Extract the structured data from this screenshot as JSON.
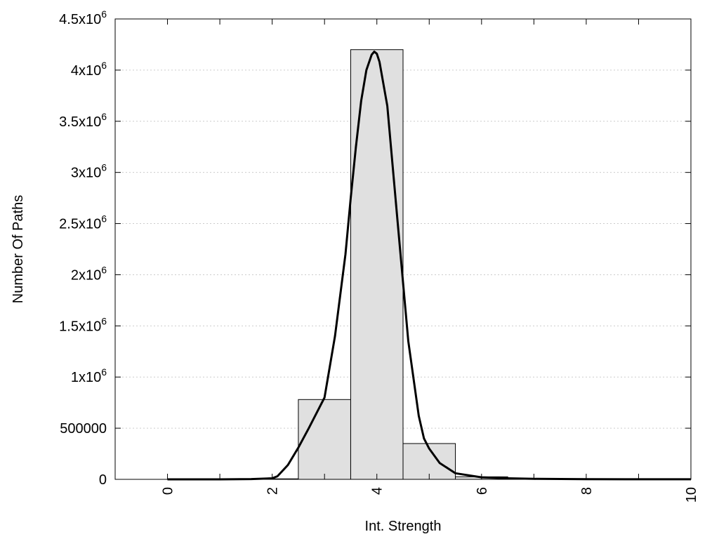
{
  "chart_data": {
    "type": "bar",
    "title": "",
    "xlabel": "Int. Strength",
    "ylabel": "Number Of Paths",
    "xlim": [
      -1,
      10
    ],
    "ylim": [
      0,
      4500000
    ],
    "grid": true,
    "legend": "none",
    "x_ticks": [
      {
        "value": 0,
        "label": "0"
      },
      {
        "value": 2,
        "label": "2"
      },
      {
        "value": 4,
        "label": "4"
      },
      {
        "value": 6,
        "label": "6"
      },
      {
        "value": 8,
        "label": "8"
      },
      {
        "value": 10,
        "label": "10"
      }
    ],
    "y_ticks": [
      {
        "value": 0,
        "base": "0",
        "exp": ""
      },
      {
        "value": 500000,
        "base": "500000",
        "exp": ""
      },
      {
        "value": 1000000,
        "base": "1x10",
        "exp": "6"
      },
      {
        "value": 1500000,
        "base": "1.5x10",
        "exp": "6"
      },
      {
        "value": 2000000,
        "base": "2x10",
        "exp": "6"
      },
      {
        "value": 2500000,
        "base": "2.5x10",
        "exp": "6"
      },
      {
        "value": 3000000,
        "base": "3x10",
        "exp": "6"
      },
      {
        "value": 3500000,
        "base": "3.5x10",
        "exp": "6"
      },
      {
        "value": 4000000,
        "base": "4x10",
        "exp": "6"
      },
      {
        "value": 4500000,
        "base": "4.5x10",
        "exp": "6"
      }
    ],
    "bins": [
      {
        "center": 0,
        "value": 0
      },
      {
        "center": 1,
        "value": 0
      },
      {
        "center": 2,
        "value": 5000
      },
      {
        "center": 3,
        "value": 780000
      },
      {
        "center": 4,
        "value": 4200000
      },
      {
        "center": 5,
        "value": 350000
      },
      {
        "center": 6,
        "value": 25000
      },
      {
        "center": 7,
        "value": 5000
      },
      {
        "center": 8,
        "value": 2000
      },
      {
        "center": 9,
        "value": 1000
      }
    ],
    "bin_width": 1,
    "fit_curve": {
      "x": [
        0,
        1,
        1.6,
        2.0,
        2.1,
        2.3,
        2.5,
        2.7,
        3.0,
        3.2,
        3.4,
        3.5,
        3.6,
        3.7,
        3.8,
        3.9,
        3.95,
        4.0,
        4.05,
        4.2,
        4.4,
        4.6,
        4.8,
        4.9,
        5.0,
        5.2,
        5.5,
        6.0,
        6.5,
        7,
        8,
        9,
        10
      ],
      "y": [
        0,
        0,
        3000,
        10000,
        30000,
        140000,
        310000,
        500000,
        800000,
        1400000,
        2200000,
        2750000,
        3250000,
        3700000,
        4000000,
        4150000,
        4180000,
        4160000,
        4080000,
        3650000,
        2500000,
        1350000,
        620000,
        400000,
        300000,
        160000,
        60000,
        20000,
        10000,
        5000,
        2000,
        1000,
        500
      ],
      "color": "#000000"
    },
    "bar_fill": "#e0e0e0",
    "bar_stroke": "#000000",
    "grid_color": "#cccccc"
  }
}
